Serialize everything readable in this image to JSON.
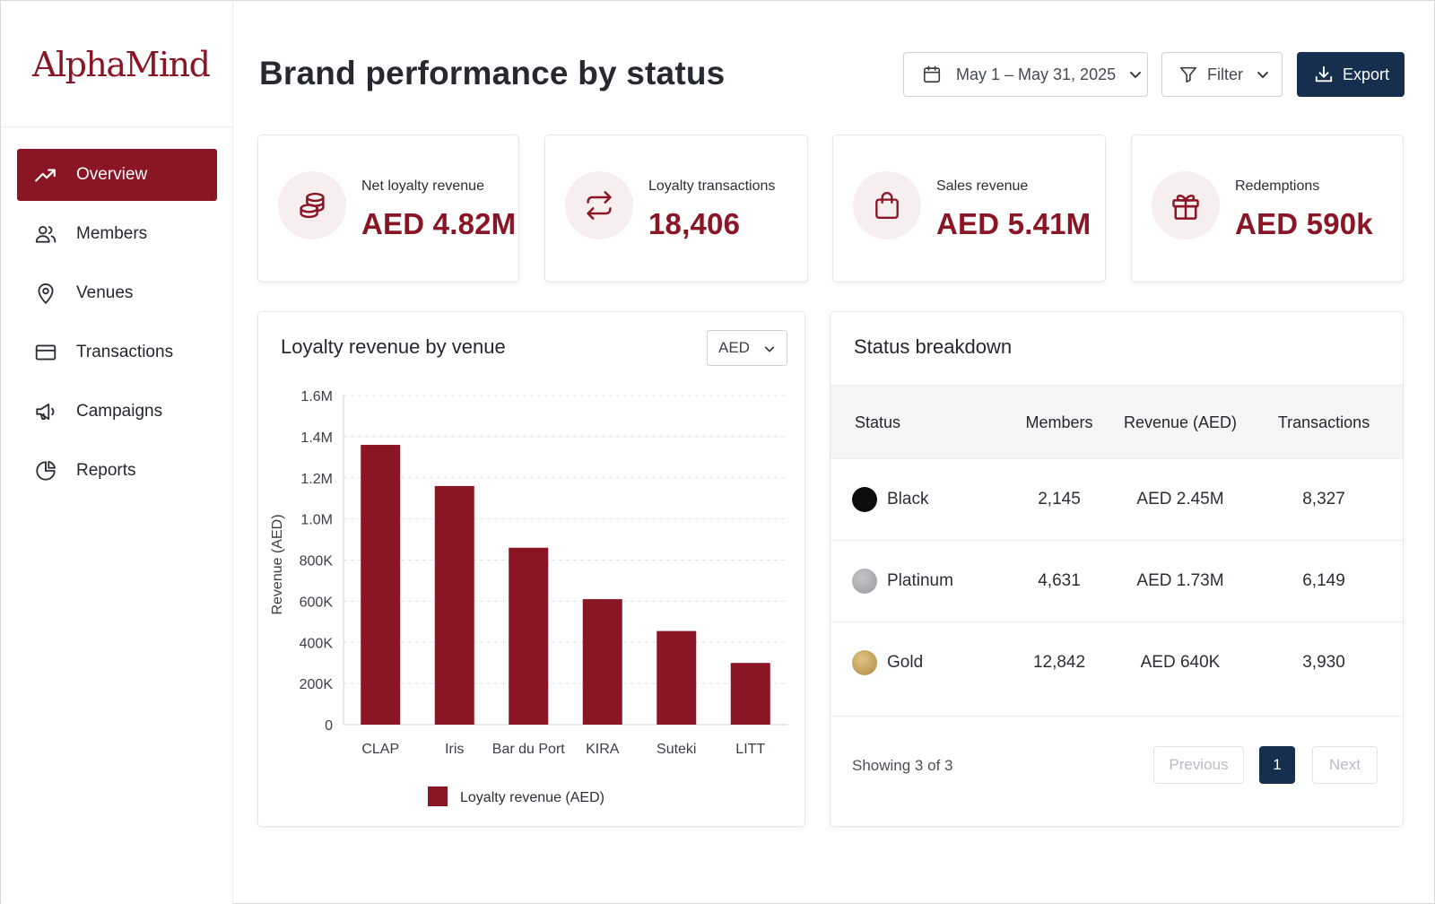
{
  "brand": {
    "logo_text": "AlphaMind"
  },
  "sidebar": {
    "items": [
      {
        "label": "Overview",
        "icon": "trend-up-icon",
        "active": true
      },
      {
        "label": "Members",
        "icon": "users-icon",
        "active": false
      },
      {
        "label": "Venues",
        "icon": "map-pin-icon",
        "active": false
      },
      {
        "label": "Transactions",
        "icon": "credit-card-icon",
        "active": false
      },
      {
        "label": "Campaigns",
        "icon": "megaphone-icon",
        "active": false
      },
      {
        "label": "Reports",
        "icon": "pie-chart-icon",
        "active": false
      }
    ]
  },
  "header": {
    "title": "Brand performance by status",
    "date_range": "May 1 – May 31, 2025",
    "filter_label": "Filter",
    "export_label": "Export"
  },
  "stats": [
    {
      "label": "Net loyalty revenue",
      "value": "AED 4.82M",
      "icon": "coins-icon"
    },
    {
      "label": "Loyalty transactions",
      "value": "18,406",
      "icon": "swap-arrows-icon"
    },
    {
      "label": "Sales revenue",
      "value": "AED 5.41M",
      "icon": "shopping-bag-icon"
    },
    {
      "label": "Redemptions",
      "value": "AED 590k",
      "icon": "gift-icon"
    }
  ],
  "chart_card": {
    "title": "Loyalty revenue by venue",
    "currency_select": "AED"
  },
  "chart_data": {
    "type": "bar",
    "categories": [
      "CLAP",
      "Iris",
      "Bar du Port",
      "KIRA",
      "Suteki",
      "LITT"
    ],
    "series": [
      {
        "name": "Loyalty revenue (AED)",
        "values": [
          1360000,
          1160000,
          860000,
          610000,
          455000,
          300000
        ],
        "color": "#8a1524"
      }
    ],
    "title": "",
    "xlabel": "",
    "ylabel": "Revenue (AED)",
    "ylim": [
      0,
      1600000
    ],
    "yticks": [
      0,
      200000,
      400000,
      600000,
      800000,
      1000000,
      1200000,
      1400000,
      1600000
    ],
    "ytick_labels": [
      "0",
      "200K",
      "400K",
      "600K",
      "800K",
      "1.0M",
      "1.2M",
      "1.4M",
      "1.6M"
    ],
    "grid": true,
    "legend": "bottom-center"
  },
  "status_table": {
    "title": "Status breakdown",
    "columns": [
      "Status",
      "Members",
      "Revenue (AED)",
      "Transactions"
    ],
    "rows": [
      {
        "status": "Black",
        "color": "#0d0d0f",
        "members": "2,145",
        "revenue": "AED 2.45M",
        "transactions": "8,327"
      },
      {
        "status": "Platinum",
        "color": "#a8a9ad",
        "members": "4,631",
        "revenue": "AED 1.73M",
        "transactions": "6,149"
      },
      {
        "status": "Gold",
        "color": "#c6a25a",
        "members": "12,842",
        "revenue": "AED 640K",
        "transactions": "3,930"
      }
    ],
    "showing_text": "Showing 3 of 3",
    "pagination": {
      "previous": "Previous",
      "current_page": "1",
      "next": "Next"
    }
  },
  "colors": {
    "accent": "#8a1524",
    "navy": "#172f4f",
    "icon_bg": "#f7eeef"
  }
}
